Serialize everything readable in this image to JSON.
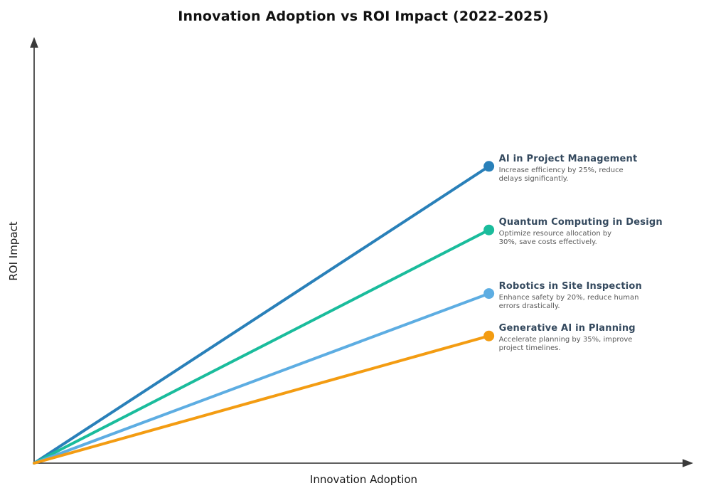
{
  "canvas": {
    "background": "#ffffff"
  },
  "chart_data": {
    "type": "line",
    "title": "Innovation Adoption vs ROI Impact (2022–2025)",
    "xlabel": "Innovation Adoption",
    "ylabel": "ROI Impact",
    "axes": {
      "ticks": "none",
      "arrows": true,
      "xlim": [
        0,
        1
      ],
      "ylim": [
        0,
        1
      ],
      "grid": false
    },
    "legend_position": "none",
    "label_colors": {
      "heading": "#34495E",
      "description": "#595959"
    },
    "series": [
      {
        "name": "AI in Project Management",
        "color": "#2980B9",
        "x": [
          0,
          0.69
        ],
        "y": [
          0,
          0.7
        ],
        "desc_lines": [
          "Increase efficiency by 25%, reduce",
          "delays significantly."
        ]
      },
      {
        "name": "Quantum Computing in Design",
        "color": "#1ABC9C",
        "x": [
          0,
          0.69
        ],
        "y": [
          0,
          0.55
        ],
        "desc_lines": [
          "Optimize resource allocation by",
          "30%, save costs effectively."
        ]
      },
      {
        "name": "Robotics in Site Inspection",
        "color": "#5DADE2",
        "x": [
          0,
          0.69
        ],
        "y": [
          0,
          0.4
        ],
        "desc_lines": [
          "Enhance safety by 20%, reduce human",
          "errors drastically."
        ]
      },
      {
        "name": "Generative AI in Planning",
        "color": "#F39C12",
        "x": [
          0,
          0.69
        ],
        "y": [
          0,
          0.3
        ],
        "desc_lines": [
          "Accelerate planning by 35%, improve",
          "project timelines."
        ]
      }
    ]
  }
}
